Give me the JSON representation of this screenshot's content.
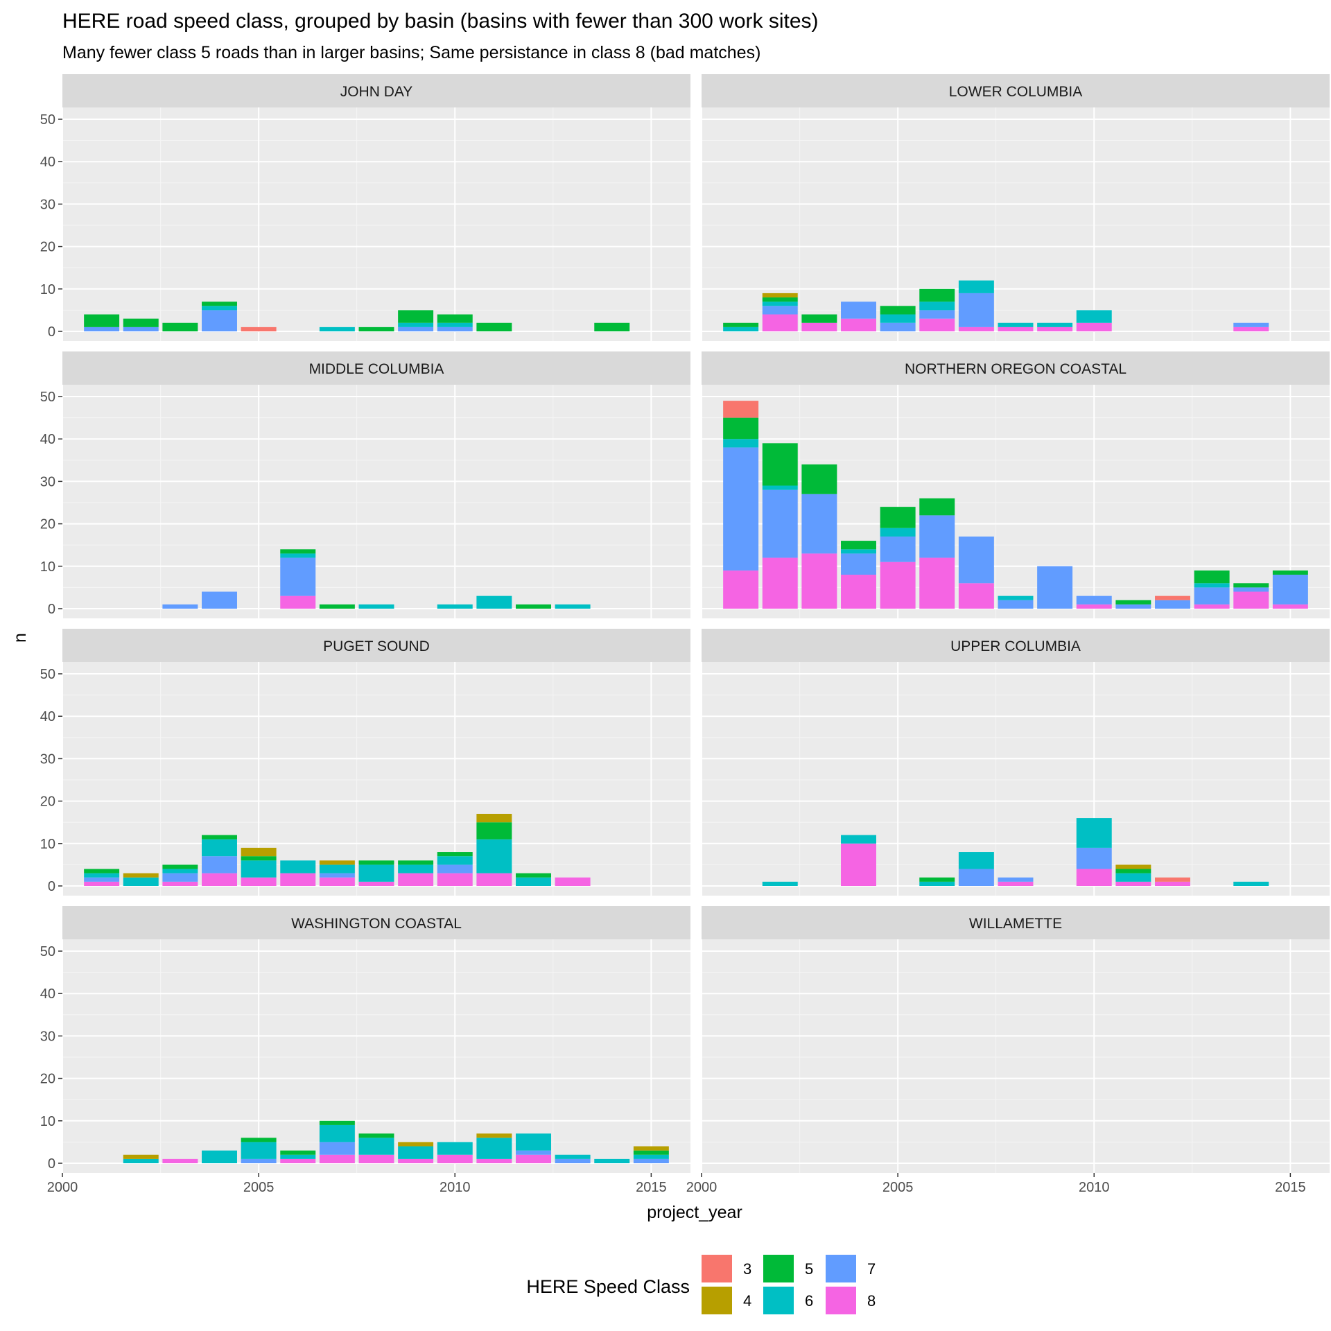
{
  "chart_data": {
    "type": "bar",
    "stacked": true,
    "faceted": true,
    "title": "HERE road speed class, grouped by basin (basins with fewer than 300 work sites)",
    "subtitle": "Many fewer class 5 roads than in larger basins; Same persistance in class 8 (bad matches)",
    "xlabel": "project_year",
    "ylabel": "n",
    "xlim": [
      2000,
      2016
    ],
    "ylim": [
      0,
      50
    ],
    "x_ticks": [
      2000,
      2005,
      2010,
      2015
    ],
    "y_ticks": [
      0,
      10,
      20,
      30,
      40,
      50
    ],
    "grid": true,
    "legend": {
      "title": "HERE Speed Class",
      "position": "bottom",
      "entries": [
        {
          "label": "3",
          "color": "#F8766D"
        },
        {
          "label": "4",
          "color": "#B79F00"
        },
        {
          "label": "5",
          "color": "#00BA38"
        },
        {
          "label": "6",
          "color": "#00BFC4"
        },
        {
          "label": "7",
          "color": "#619CFF"
        },
        {
          "label": "8",
          "color": "#F564E3"
        }
      ]
    },
    "stack_order": [
      "8",
      "7",
      "6",
      "5",
      "4",
      "3"
    ],
    "panels": [
      {
        "name": "JOHN DAY",
        "bars": [
          {
            "year": 2001,
            "counts": {
              "5": 3,
              "7": 1
            }
          },
          {
            "year": 2002,
            "counts": {
              "5": 2,
              "7": 1
            }
          },
          {
            "year": 2003,
            "counts": {
              "5": 2
            }
          },
          {
            "year": 2004,
            "counts": {
              "5": 1,
              "6": 1,
              "7": 5
            }
          },
          {
            "year": 2005,
            "counts": {
              "3": 1
            }
          },
          {
            "year": 2007,
            "counts": {
              "6": 1
            }
          },
          {
            "year": 2008,
            "counts": {
              "5": 1
            }
          },
          {
            "year": 2009,
            "counts": {
              "5": 3,
              "6": 1,
              "7": 1
            }
          },
          {
            "year": 2010,
            "counts": {
              "5": 2,
              "6": 1,
              "7": 1
            }
          },
          {
            "year": 2011,
            "counts": {
              "5": 2
            }
          },
          {
            "year": 2014,
            "counts": {
              "5": 2
            }
          }
        ]
      },
      {
        "name": "LOWER COLUMBIA",
        "bars": [
          {
            "year": 2001,
            "counts": {
              "5": 1,
              "6": 1
            }
          },
          {
            "year": 2002,
            "counts": {
              "4": 1,
              "5": 1,
              "6": 1,
              "7": 2,
              "8": 4
            }
          },
          {
            "year": 2003,
            "counts": {
              "5": 2,
              "8": 2
            }
          },
          {
            "year": 2004,
            "counts": {
              "7": 4,
              "8": 3
            }
          },
          {
            "year": 2005,
            "counts": {
              "5": 2,
              "6": 2,
              "7": 2
            }
          },
          {
            "year": 2006,
            "counts": {
              "5": 3,
              "6": 2,
              "7": 2,
              "8": 3
            }
          },
          {
            "year": 2007,
            "counts": {
              "6": 3,
              "7": 8,
              "8": 1
            }
          },
          {
            "year": 2008,
            "counts": {
              "6": 1,
              "8": 1
            }
          },
          {
            "year": 2009,
            "counts": {
              "6": 1,
              "8": 1
            }
          },
          {
            "year": 2010,
            "counts": {
              "6": 3,
              "8": 2
            }
          },
          {
            "year": 2014,
            "counts": {
              "7": 1,
              "8": 1
            }
          }
        ]
      },
      {
        "name": "MIDDLE COLUMBIA",
        "bars": [
          {
            "year": 2003,
            "counts": {
              "7": 1
            }
          },
          {
            "year": 2004,
            "counts": {
              "7": 4
            }
          },
          {
            "year": 2006,
            "counts": {
              "5": 1,
              "6": 1,
              "7": 9,
              "8": 3
            }
          },
          {
            "year": 2007,
            "counts": {
              "5": 1
            }
          },
          {
            "year": 2008,
            "counts": {
              "6": 1
            }
          },
          {
            "year": 2010,
            "counts": {
              "6": 1
            }
          },
          {
            "year": 2011,
            "counts": {
              "6": 3
            }
          },
          {
            "year": 2012,
            "counts": {
              "5": 1
            }
          },
          {
            "year": 2013,
            "counts": {
              "6": 1
            }
          }
        ]
      },
      {
        "name": "NORTHERN OREGON COASTAL",
        "bars": [
          {
            "year": 2001,
            "counts": {
              "3": 4,
              "5": 5,
              "6": 2,
              "7": 29,
              "8": 9
            }
          },
          {
            "year": 2002,
            "counts": {
              "5": 10,
              "6": 1,
              "7": 16,
              "8": 12
            }
          },
          {
            "year": 2003,
            "counts": {
              "5": 7,
              "7": 14,
              "8": 13
            }
          },
          {
            "year": 2004,
            "counts": {
              "5": 2,
              "6": 1,
              "7": 5,
              "8": 8
            }
          },
          {
            "year": 2005,
            "counts": {
              "5": 5,
              "6": 2,
              "7": 6,
              "8": 11
            }
          },
          {
            "year": 2006,
            "counts": {
              "5": 4,
              "7": 10,
              "8": 12
            }
          },
          {
            "year": 2007,
            "counts": {
              "7": 11,
              "8": 6
            }
          },
          {
            "year": 2008,
            "counts": {
              "6": 1,
              "7": 2
            }
          },
          {
            "year": 2009,
            "counts": {
              "7": 10
            }
          },
          {
            "year": 2010,
            "counts": {
              "7": 2,
              "8": 1
            }
          },
          {
            "year": 2011,
            "counts": {
              "5": 1,
              "7": 1
            }
          },
          {
            "year": 2012,
            "counts": {
              "3": 1,
              "7": 2
            }
          },
          {
            "year": 2013,
            "counts": {
              "5": 3,
              "6": 1,
              "7": 4,
              "8": 1
            }
          },
          {
            "year": 2014,
            "counts": {
              "5": 1,
              "7": 1,
              "8": 4
            }
          },
          {
            "year": 2015,
            "counts": {
              "5": 1,
              "7": 7,
              "8": 1
            }
          }
        ]
      },
      {
        "name": "PUGET SOUND",
        "bars": [
          {
            "year": 2001,
            "counts": {
              "5": 1,
              "6": 1,
              "7": 1,
              "8": 1
            }
          },
          {
            "year": 2002,
            "counts": {
              "4": 1,
              "6": 2
            }
          },
          {
            "year": 2003,
            "counts": {
              "5": 1,
              "6": 1,
              "7": 2,
              "8": 1
            }
          },
          {
            "year": 2004,
            "counts": {
              "5": 1,
              "6": 4,
              "7": 4,
              "8": 3
            }
          },
          {
            "year": 2005,
            "counts": {
              "4": 2,
              "5": 1,
              "6": 4,
              "8": 2
            }
          },
          {
            "year": 2006,
            "counts": {
              "6": 3,
              "8": 3
            }
          },
          {
            "year": 2007,
            "counts": {
              "4": 1,
              "6": 2,
              "7": 1,
              "8": 2
            }
          },
          {
            "year": 2008,
            "counts": {
              "5": 1,
              "6": 4,
              "8": 1
            }
          },
          {
            "year": 2009,
            "counts": {
              "5": 1,
              "6": 2,
              "8": 3
            }
          },
          {
            "year": 2010,
            "counts": {
              "5": 1,
              "6": 2,
              "7": 2,
              "8": 3
            }
          },
          {
            "year": 2011,
            "counts": {
              "4": 2,
              "5": 4,
              "6": 8,
              "8": 3
            }
          },
          {
            "year": 2012,
            "counts": {
              "5": 1,
              "6": 2
            }
          },
          {
            "year": 2013,
            "counts": {
              "8": 2
            }
          }
        ]
      },
      {
        "name": "UPPER COLUMBIA",
        "bars": [
          {
            "year": 2002,
            "counts": {
              "6": 1
            }
          },
          {
            "year": 2004,
            "counts": {
              "6": 2,
              "8": 10
            }
          },
          {
            "year": 2006,
            "counts": {
              "5": 1,
              "6": 1
            }
          },
          {
            "year": 2007,
            "counts": {
              "6": 4,
              "7": 4
            }
          },
          {
            "year": 2008,
            "counts": {
              "7": 1,
              "8": 1
            }
          },
          {
            "year": 2010,
            "counts": {
              "6": 7,
              "7": 5,
              "8": 4
            }
          },
          {
            "year": 2011,
            "counts": {
              "4": 1,
              "5": 1,
              "6": 2,
              "8": 1
            }
          },
          {
            "year": 2012,
            "counts": {
              "3": 1,
              "8": 1
            }
          },
          {
            "year": 2014,
            "counts": {
              "6": 1
            }
          }
        ]
      },
      {
        "name": "WASHINGTON COASTAL",
        "bars": [
          {
            "year": 2002,
            "counts": {
              "4": 1,
              "6": 1
            }
          },
          {
            "year": 2003,
            "counts": {
              "8": 1
            }
          },
          {
            "year": 2004,
            "counts": {
              "6": 3
            }
          },
          {
            "year": 2005,
            "counts": {
              "5": 1,
              "6": 4,
              "7": 1
            }
          },
          {
            "year": 2006,
            "counts": {
              "5": 1,
              "6": 1,
              "8": 1
            }
          },
          {
            "year": 2007,
            "counts": {
              "5": 1,
              "6": 4,
              "7": 3,
              "8": 2
            }
          },
          {
            "year": 2008,
            "counts": {
              "5": 1,
              "6": 4,
              "8": 2
            }
          },
          {
            "year": 2009,
            "counts": {
              "4": 1,
              "6": 3,
              "8": 1
            }
          },
          {
            "year": 2010,
            "counts": {
              "6": 3,
              "8": 2
            }
          },
          {
            "year": 2011,
            "counts": {
              "4": 1,
              "6": 5,
              "8": 1
            }
          },
          {
            "year": 2012,
            "counts": {
              "6": 4,
              "7": 1,
              "8": 2
            }
          },
          {
            "year": 2013,
            "counts": {
              "6": 1,
              "7": 1
            }
          },
          {
            "year": 2014,
            "counts": {
              "6": 1
            }
          },
          {
            "year": 2015,
            "counts": {
              "4": 1,
              "5": 1,
              "6": 1,
              "7": 1
            }
          }
        ]
      },
      {
        "name": "WILLAMETTE",
        "bars": []
      }
    ]
  }
}
